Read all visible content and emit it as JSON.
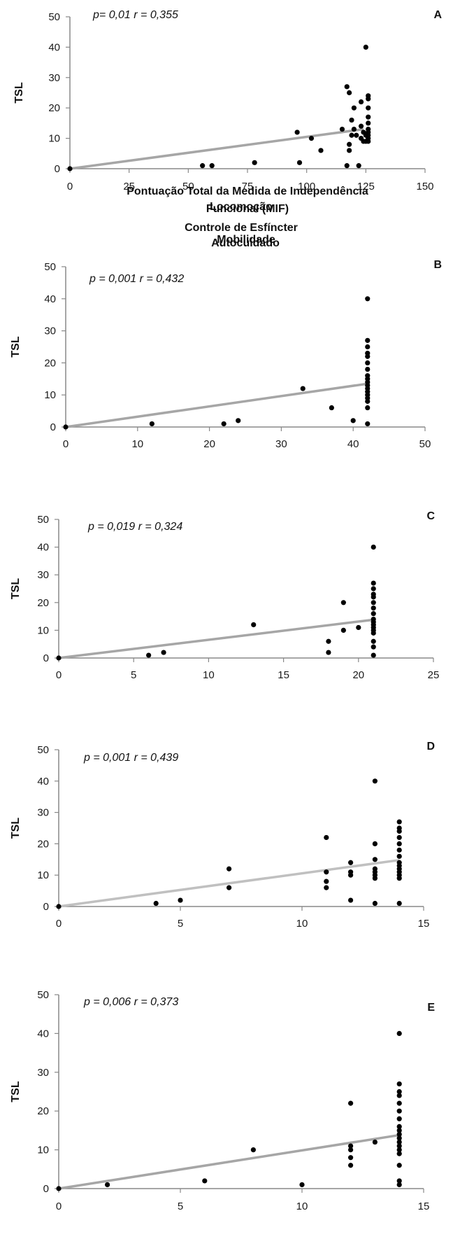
{
  "chart_data": [
    {
      "type": "scatter",
      "panel": "A",
      "stats": "p= 0,01     r = 0,355",
      "xlabel": [
        "Pontuação Total da Medida de Independência",
        "Funcional (MIF)"
      ],
      "ylabel": "TSL",
      "xlim": [
        0,
        150
      ],
      "ylim": [
        0,
        50
      ],
      "xticks": [
        "0",
        "25",
        "50",
        "75",
        "100",
        "125",
        "150"
      ],
      "yticks": [
        "0",
        "10",
        "20",
        "30",
        "40",
        "50"
      ],
      "grid": false,
      "trendline_color": "#a6a6a6",
      "trendline": {
        "x": [
          0,
          124
        ],
        "y": [
          0,
          13
        ]
      },
      "points": [
        {
          "x": 0,
          "y": 0
        },
        {
          "x": 56,
          "y": 1
        },
        {
          "x": 60,
          "y": 1
        },
        {
          "x": 78,
          "y": 2
        },
        {
          "x": 96,
          "y": 12
        },
        {
          "x": 97,
          "y": 2
        },
        {
          "x": 102,
          "y": 10
        },
        {
          "x": 106,
          "y": 6
        },
        {
          "x": 115,
          "y": 13
        },
        {
          "x": 117,
          "y": 27
        },
        {
          "x": 117,
          "y": 1
        },
        {
          "x": 118,
          "y": 25
        },
        {
          "x": 118,
          "y": 8
        },
        {
          "x": 118,
          "y": 6
        },
        {
          "x": 119,
          "y": 16
        },
        {
          "x": 119,
          "y": 11
        },
        {
          "x": 120,
          "y": 20
        },
        {
          "x": 120,
          "y": 13
        },
        {
          "x": 121,
          "y": 11
        },
        {
          "x": 122,
          "y": 1
        },
        {
          "x": 123,
          "y": 22
        },
        {
          "x": 123,
          "y": 14
        },
        {
          "x": 123,
          "y": 10
        },
        {
          "x": 124,
          "y": 12
        },
        {
          "x": 124,
          "y": 9
        },
        {
          "x": 125,
          "y": 40
        },
        {
          "x": 125,
          "y": 11
        },
        {
          "x": 125,
          "y": 9
        },
        {
          "x": 126,
          "y": 24
        },
        {
          "x": 126,
          "y": 23
        },
        {
          "x": 126,
          "y": 20
        },
        {
          "x": 126,
          "y": 17
        },
        {
          "x": 126,
          "y": 15
        },
        {
          "x": 126,
          "y": 13
        },
        {
          "x": 126,
          "y": 12
        },
        {
          "x": 126,
          "y": 11
        },
        {
          "x": 126,
          "y": 10
        },
        {
          "x": 126,
          "y": 9
        }
      ]
    },
    {
      "type": "scatter",
      "panel": "B",
      "stats": "p = 0,001   r = 0,432",
      "xlabel": [
        "Autocuidado"
      ],
      "ylabel": "TSL",
      "xlim": [
        0,
        50
      ],
      "ylim": [
        0,
        50
      ],
      "xticks": [
        "0",
        "10",
        "20",
        "30",
        "40",
        "50"
      ],
      "yticks": [
        "0",
        "10",
        "20",
        "30",
        "40",
        "50"
      ],
      "grid": false,
      "trendline_color": "#a6a6a6",
      "trendline": {
        "x": [
          0,
          42
        ],
        "y": [
          0,
          13.5
        ]
      },
      "points": [
        {
          "x": 0,
          "y": 0
        },
        {
          "x": 12,
          "y": 1
        },
        {
          "x": 22,
          "y": 1
        },
        {
          "x": 24,
          "y": 2
        },
        {
          "x": 33,
          "y": 12
        },
        {
          "x": 37,
          "y": 6
        },
        {
          "x": 40,
          "y": 2
        },
        {
          "x": 42,
          "y": 40
        },
        {
          "x": 42,
          "y": 27
        },
        {
          "x": 42,
          "y": 25
        },
        {
          "x": 42,
          "y": 23
        },
        {
          "x": 42,
          "y": 22
        },
        {
          "x": 42,
          "y": 20
        },
        {
          "x": 42,
          "y": 18
        },
        {
          "x": 42,
          "y": 16
        },
        {
          "x": 42,
          "y": 15
        },
        {
          "x": 42,
          "y": 14
        },
        {
          "x": 42,
          "y": 13
        },
        {
          "x": 42,
          "y": 12
        },
        {
          "x": 42,
          "y": 11
        },
        {
          "x": 42,
          "y": 10
        },
        {
          "x": 42,
          "y": 9
        },
        {
          "x": 42,
          "y": 8
        },
        {
          "x": 42,
          "y": 6
        },
        {
          "x": 42,
          "y": 1
        }
      ]
    },
    {
      "type": "scatter",
      "panel": "C",
      "stats": "p = 0,019   r = 0,324",
      "xlabel": [
        "Mobilidade"
      ],
      "ylabel": "TSL",
      "xlim": [
        0,
        25
      ],
      "ylim": [
        0,
        50
      ],
      "xticks": [
        "0",
        "5",
        "10",
        "15",
        "20",
        "25"
      ],
      "yticks": [
        "0",
        "10",
        "20",
        "30",
        "40",
        "50"
      ],
      "grid": false,
      "trendline_color": "#a6a6a6",
      "trendline": {
        "x": [
          0,
          21
        ],
        "y": [
          0,
          13.8
        ]
      },
      "points": [
        {
          "x": 0,
          "y": 0
        },
        {
          "x": 6,
          "y": 1
        },
        {
          "x": 7,
          "y": 2
        },
        {
          "x": 13,
          "y": 12
        },
        {
          "x": 18,
          "y": 6
        },
        {
          "x": 18,
          "y": 2
        },
        {
          "x": 19,
          "y": 20
        },
        {
          "x": 19,
          "y": 10
        },
        {
          "x": 20,
          "y": 11
        },
        {
          "x": 21,
          "y": 40
        },
        {
          "x": 21,
          "y": 27
        },
        {
          "x": 21,
          "y": 25
        },
        {
          "x": 21,
          "y": 23
        },
        {
          "x": 21,
          "y": 22
        },
        {
          "x": 21,
          "y": 20
        },
        {
          "x": 21,
          "y": 18
        },
        {
          "x": 21,
          "y": 16
        },
        {
          "x": 21,
          "y": 14
        },
        {
          "x": 21,
          "y": 13
        },
        {
          "x": 21,
          "y": 12
        },
        {
          "x": 21,
          "y": 11
        },
        {
          "x": 21,
          "y": 10
        },
        {
          "x": 21,
          "y": 9
        },
        {
          "x": 21,
          "y": 6
        },
        {
          "x": 21,
          "y": 4
        },
        {
          "x": 21,
          "y": 1
        }
      ]
    },
    {
      "type": "scatter",
      "panel": "D",
      "stats": "p = 0,001   r = 0,439",
      "xlabel": [
        "Locomoção"
      ],
      "ylabel": "TSL",
      "xlim": [
        0,
        15
      ],
      "ylim": [
        0,
        50
      ],
      "xticks": [
        "0",
        "5",
        "10",
        "15"
      ],
      "yticks": [
        "0",
        "10",
        "20",
        "30",
        "40",
        "50"
      ],
      "grid": false,
      "trendline_color": "#c0c0c0",
      "trendline": {
        "x": [
          0,
          14
        ],
        "y": [
          0,
          14.8
        ]
      },
      "points": [
        {
          "x": 0,
          "y": 0
        },
        {
          "x": 4,
          "y": 1
        },
        {
          "x": 5,
          "y": 2
        },
        {
          "x": 7,
          "y": 12
        },
        {
          "x": 7,
          "y": 6
        },
        {
          "x": 11,
          "y": 22
        },
        {
          "x": 11,
          "y": 11
        },
        {
          "x": 11,
          "y": 8
        },
        {
          "x": 11,
          "y": 6
        },
        {
          "x": 12,
          "y": 14
        },
        {
          "x": 12,
          "y": 11
        },
        {
          "x": 12,
          "y": 10
        },
        {
          "x": 12,
          "y": 2
        },
        {
          "x": 13,
          "y": 40
        },
        {
          "x": 13,
          "y": 20
        },
        {
          "x": 13,
          "y": 15
        },
        {
          "x": 13,
          "y": 12
        },
        {
          "x": 13,
          "y": 11
        },
        {
          "x": 13,
          "y": 10
        },
        {
          "x": 13,
          "y": 9
        },
        {
          "x": 13,
          "y": 1
        },
        {
          "x": 14,
          "y": 27
        },
        {
          "x": 14,
          "y": 25
        },
        {
          "x": 14,
          "y": 24
        },
        {
          "x": 14,
          "y": 22
        },
        {
          "x": 14,
          "y": 20
        },
        {
          "x": 14,
          "y": 18
        },
        {
          "x": 14,
          "y": 16
        },
        {
          "x": 14,
          "y": 14
        },
        {
          "x": 14,
          "y": 13
        },
        {
          "x": 14,
          "y": 12
        },
        {
          "x": 14,
          "y": 11
        },
        {
          "x": 14,
          "y": 10
        },
        {
          "x": 14,
          "y": 9
        },
        {
          "x": 14,
          "y": 1
        }
      ]
    },
    {
      "type": "scatter",
      "panel": "E",
      "stats": "p = 0,006   r = 0,373",
      "xlabel": [
        "Controle de Esfíncter"
      ],
      "ylabel": "TSL",
      "xlim": [
        0,
        15
      ],
      "ylim": [
        0,
        50
      ],
      "xticks": [
        "0",
        "5",
        "10",
        "15"
      ],
      "yticks": [
        "0",
        "10",
        "20",
        "30",
        "40",
        "50"
      ],
      "grid": false,
      "trendline_color": "#a6a6a6",
      "trendline": {
        "x": [
          0,
          14
        ],
        "y": [
          0,
          13.8
        ]
      },
      "points": [
        {
          "x": 0,
          "y": 0
        },
        {
          "x": 2,
          "y": 1
        },
        {
          "x": 6,
          "y": 2
        },
        {
          "x": 8,
          "y": 10
        },
        {
          "x": 10,
          "y": 1
        },
        {
          "x": 12,
          "y": 22
        },
        {
          "x": 12,
          "y": 11
        },
        {
          "x": 12,
          "y": 10
        },
        {
          "x": 12,
          "y": 8
        },
        {
          "x": 12,
          "y": 6
        },
        {
          "x": 13,
          "y": 12
        },
        {
          "x": 14,
          "y": 40
        },
        {
          "x": 14,
          "y": 27
        },
        {
          "x": 14,
          "y": 25
        },
        {
          "x": 14,
          "y": 24
        },
        {
          "x": 14,
          "y": 22
        },
        {
          "x": 14,
          "y": 20
        },
        {
          "x": 14,
          "y": 18
        },
        {
          "x": 14,
          "y": 16
        },
        {
          "x": 14,
          "y": 15
        },
        {
          "x": 14,
          "y": 14
        },
        {
          "x": 14,
          "y": 13
        },
        {
          "x": 14,
          "y": 12
        },
        {
          "x": 14,
          "y": 11
        },
        {
          "x": 14,
          "y": 10
        },
        {
          "x": 14,
          "y": 9
        },
        {
          "x": 14,
          "y": 6
        },
        {
          "x": 14,
          "y": 2
        },
        {
          "x": 14,
          "y": 1
        }
      ]
    }
  ]
}
